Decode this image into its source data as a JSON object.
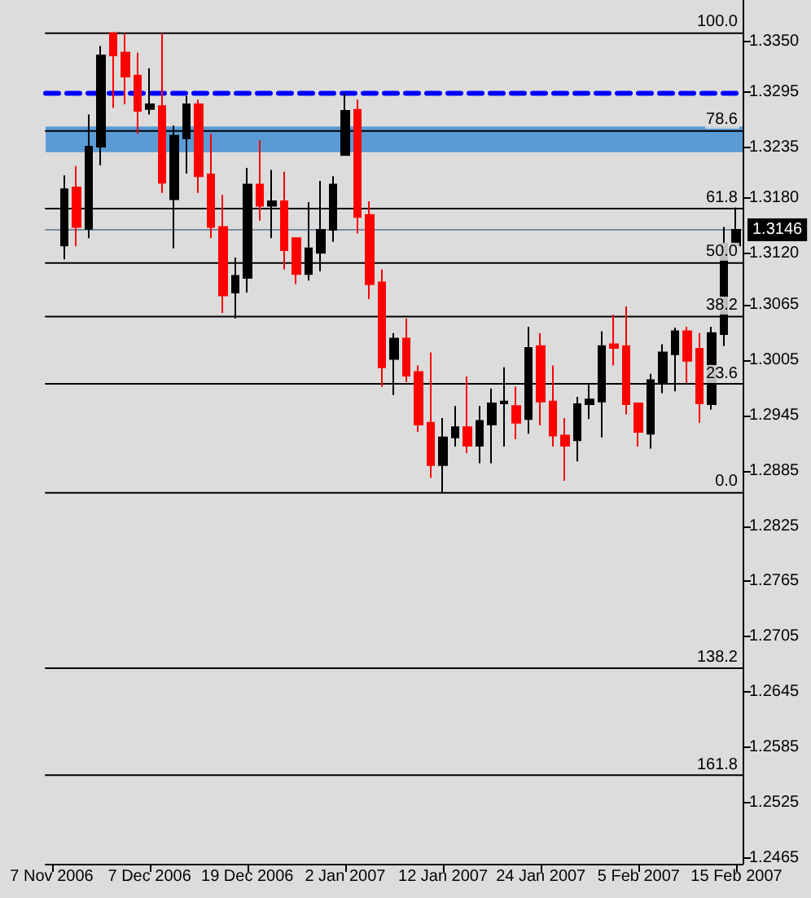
{
  "chart_data": {
    "type": "candlestick",
    "categories": [
      "7 Nov 2006",
      null,
      null,
      null,
      null,
      null,
      null,
      null,
      "7 Dec 2006",
      null,
      null,
      null,
      null,
      null,
      null,
      null,
      "19 Dec 2006",
      null,
      null,
      null,
      null,
      null,
      null,
      null,
      "2 Jan 2007",
      null,
      null,
      null,
      null,
      null,
      null,
      null,
      "12 Jan 2007",
      null,
      null,
      null,
      null,
      null,
      null,
      null,
      "24 Jan 2007",
      null,
      null,
      null,
      null,
      null,
      null,
      null,
      "5 Feb 2007",
      null,
      null,
      null,
      null,
      null,
      null,
      null,
      "15 Feb 2007"
    ],
    "ohlc": [
      null,
      [
        1.3129,
        1.3205,
        1.3114,
        1.319
      ],
      [
        1.3192,
        1.3215,
        1.3128,
        1.3149
      ],
      [
        1.3147,
        1.3271,
        1.3137,
        1.3236
      ],
      [
        1.3236,
        1.3345,
        1.3216,
        1.3335
      ],
      [
        1.3359,
        1.3359,
        1.3278,
        1.3335
      ],
      [
        1.3338,
        1.3359,
        1.3282,
        1.3312
      ],
      [
        1.3313,
        1.3338,
        1.325,
        1.3275
      ],
      [
        1.3277,
        1.3321,
        1.3271,
        1.3282
      ],
      [
        1.328,
        1.3359,
        1.3186,
        1.3197
      ],
      [
        1.3179,
        1.3259,
        1.3126,
        1.3248
      ],
      [
        1.3245,
        1.3291,
        1.3207,
        1.3282
      ],
      [
        1.3282,
        1.3287,
        1.3186,
        1.3204
      ],
      [
        1.3206,
        1.325,
        1.3137,
        1.3149
      ],
      [
        1.3149,
        1.3184,
        1.3056,
        1.3075
      ],
      [
        1.3078,
        1.3116,
        1.305,
        1.3096
      ],
      [
        1.3094,
        1.3213,
        1.3078,
        1.3195
      ],
      [
        1.3195,
        1.3243,
        1.3156,
        1.3172
      ],
      [
        1.3172,
        1.3211,
        1.3137,
        1.3177
      ],
      [
        1.3177,
        1.3209,
        1.3103,
        1.3124
      ],
      [
        1.3137,
        1.3137,
        1.3087,
        1.3098
      ],
      [
        1.3098,
        1.3176,
        1.3091,
        1.3126
      ],
      [
        1.3121,
        1.3199,
        1.3101,
        1.3146
      ],
      [
        1.3146,
        1.3204,
        1.3133,
        1.3195
      ],
      [
        1.3227,
        1.3294,
        1.3227,
        1.3275
      ],
      [
        1.3276,
        1.3287,
        1.3142,
        1.316
      ],
      [
        1.3162,
        1.3177,
        1.3071,
        1.3087
      ],
      [
        1.3089,
        1.3103,
        1.2976,
        1.2997
      ],
      [
        1.3006,
        1.3034,
        1.2967,
        1.3028
      ],
      [
        1.3028,
        1.305,
        1.2981,
        1.2988
      ],
      [
        1.2992,
        1.2999,
        1.2927,
        1.2935
      ],
      [
        1.2937,
        1.3013,
        1.2877,
        1.2891
      ],
      [
        1.2891,
        1.2942,
        1.2861,
        1.2921
      ],
      [
        1.2921,
        1.2955,
        1.2911,
        1.2932
      ],
      [
        1.2932,
        1.2987,
        1.2904,
        1.2912
      ],
      [
        1.2912,
        1.2955,
        1.2893,
        1.2939
      ],
      [
        1.2935,
        1.2974,
        1.2893,
        1.2958
      ],
      [
        1.2958,
        1.2997,
        1.2911,
        1.296
      ],
      [
        1.2955,
        1.2976,
        1.2919,
        1.2937
      ],
      [
        1.2941,
        1.3041,
        1.2925,
        1.3018
      ],
      [
        1.302,
        1.3034,
        1.2934,
        1.296
      ],
      [
        1.296,
        1.2999,
        1.2911,
        1.2923
      ],
      [
        1.2923,
        1.2942,
        1.2874,
        1.2912
      ],
      [
        1.2918,
        1.2965,
        1.2895,
        1.2957
      ],
      [
        1.2957,
        1.298,
        1.2941,
        1.2962
      ],
      [
        1.296,
        1.3036,
        1.2921,
        1.302
      ],
      [
        1.3022,
        1.3054,
        1.2999,
        1.3018
      ],
      [
        1.302,
        1.3063,
        1.2946,
        1.2957
      ],
      [
        1.2958,
        1.2958,
        1.2911,
        1.2927
      ],
      [
        1.2925,
        1.299,
        1.2909,
        1.2983
      ],
      [
        1.298,
        1.3022,
        1.2969,
        1.3013
      ],
      [
        1.3011,
        1.304,
        1.2971,
        1.3036
      ],
      [
        1.3036,
        1.3041,
        1.298,
        1.3004
      ],
      [
        1.3017,
        1.3034,
        1.2937,
        1.2958
      ],
      [
        1.2957,
        1.3041,
        1.2951,
        1.3034
      ],
      [
        1.3033,
        1.3149,
        1.302,
        1.3131
      ],
      [
        1.3129,
        1.317,
        1.3129,
        1.3146
      ]
    ],
    "colors": [
      null,
      "#000000",
      "#ff0000",
      "#000000",
      "#000000",
      "#ff0000",
      "#ff0000",
      "#ff0000",
      "#000000",
      "#ff0000",
      "#000000",
      "#000000",
      "#ff0000",
      "#ff0000",
      "#ff0000",
      "#000000",
      "#000000",
      "#ff0000",
      "#000000",
      "#ff0000",
      "#ff0000",
      "#000000",
      "#000000",
      "#000000",
      "#000000",
      "#ff0000",
      "#ff0000",
      "#ff0000",
      "#000000",
      "#ff0000",
      "#ff0000",
      "#ff0000",
      "#000000",
      "#000000",
      "#ff0000",
      "#000000",
      "#000000",
      "#000000",
      "#ff0000",
      "#000000",
      "#ff0000",
      "#ff0000",
      "#ff0000",
      "#000000",
      "#000000",
      "#000000",
      "#ff0000",
      "#ff0000",
      "#ff0000",
      "#000000",
      "#000000",
      "#000000",
      "#ff0000",
      "#ff0000",
      "#000000",
      "#000000",
      "#000000"
    ],
    "ylim": [
      1.2459,
      1.3395
    ],
    "yticks": [
      {
        "value": 1.335,
        "label": "1.3350"
      },
      1.3295,
      1.3235,
      {
        "value": 1.318,
        "label": "1.3180"
      },
      {
        "value": 1.312,
        "label": "1.3120"
      },
      1.3065,
      1.3005,
      1.2945,
      1.2885,
      1.2825,
      1.2765,
      1.2705,
      1.2645,
      1.2585,
      1.2525,
      1.2465
    ],
    "ref_lines": [
      {
        "axis": "y",
        "value": 1.3359,
        "color": "#000000"
      },
      {
        "axis": "y",
        "value": 1.3253,
        "color": "#000000"
      },
      {
        "axis": "y",
        "value": 1.3169,
        "color": "#000000"
      },
      {
        "axis": "y",
        "value": 1.311,
        "color": "#000000"
      },
      {
        "axis": "y",
        "value": 1.3052,
        "color": "#000000"
      },
      {
        "axis": "y",
        "value": 1.2979,
        "color": "#000000"
      },
      {
        "axis": "y",
        "value": 1.2861,
        "color": "#000000"
      },
      {
        "axis": "y",
        "value": 1.2671,
        "color": "#000000"
      },
      {
        "axis": "y",
        "value": 1.2555,
        "color": "#000000"
      },
      {
        "axis": "y",
        "value": 1.3146,
        "label": "1.3146",
        "color": "#7a8ca0"
      },
      {
        "axis": "y",
        "value": 1.3294,
        "color": "#0000ff",
        "line_style": "dashed"
      }
    ],
    "bands": [
      {
        "axis": "y",
        "from": 1.323,
        "to": 1.3258,
        "color": "#5b9bd5"
      }
    ],
    "annotations": [
      {
        "text": "100.0",
        "y": 1.3359
      },
      {
        "text": "78.6",
        "y": 1.3253
      },
      {
        "text": "61.8",
        "y": 1.3169
      },
      {
        "text": "50.0",
        "y": 1.311
      },
      {
        "text": "38.2",
        "y": 1.3052
      },
      {
        "text": "23.6",
        "y": 1.2979
      },
      {
        "text": "0.0",
        "y": 1.2861
      },
      {
        "text": "138.2",
        "y": 1.2671
      },
      {
        "text": "161.8",
        "y": 1.2555
      }
    ],
    "grid": false
  }
}
